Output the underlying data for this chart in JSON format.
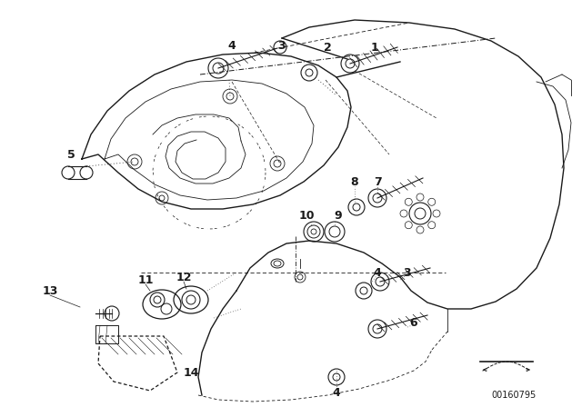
{
  "bg_color": "#ffffff",
  "line_color": "#1a1a1a",
  "fig_width": 6.4,
  "fig_height": 4.48,
  "dpi": 100,
  "part_number": "00160795",
  "title_color": "#000000"
}
